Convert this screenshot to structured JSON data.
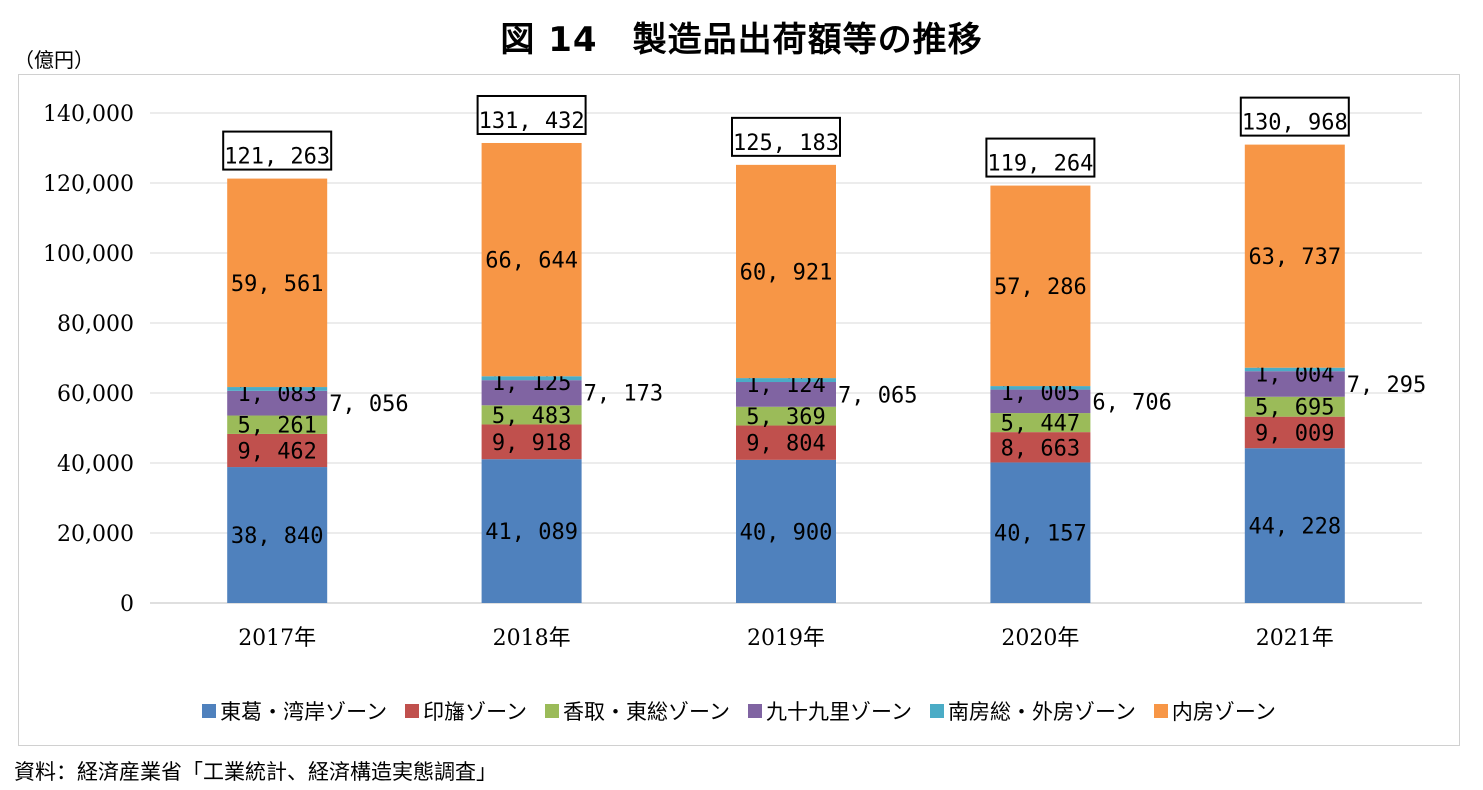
{
  "title": "図 14　製造品出荷額等の推移",
  "unit_label": "（億円）",
  "source": "資料：経済産業省「工業統計、経済構造実態調査」",
  "chart_data": {
    "type": "bar",
    "stacked": true,
    "categories": [
      "2017年",
      "2018年",
      "2019年",
      "2020年",
      "2021年"
    ],
    "ylim": [
      0,
      140000
    ],
    "yticks": [
      0,
      20000,
      40000,
      60000,
      80000,
      100000,
      120000,
      140000
    ],
    "ytick_labels": [
      "0",
      "20,000",
      "40,000",
      "60,000",
      "80,000",
      "100,000",
      "120,000",
      "140,000"
    ],
    "grid": true,
    "legend_position": "bottom",
    "series": [
      {
        "name": "東葛・湾岸ゾーン",
        "color": "#4f81bd",
        "values": [
          38840,
          41089,
          40900,
          40157,
          44228
        ],
        "labels": [
          "38, 840",
          "41, 089",
          "40, 900",
          "40, 157",
          "44, 228"
        ]
      },
      {
        "name": "印旛ゾーン",
        "color": "#c0504d",
        "values": [
          9462,
          9918,
          9804,
          8663,
          9009
        ],
        "labels": [
          "9, 462",
          "9, 918",
          "9, 804",
          "8, 663",
          "9, 009"
        ]
      },
      {
        "name": "香取・東総ゾーン",
        "color": "#9bbb59",
        "values": [
          5261,
          5483,
          5369,
          5447,
          5695
        ],
        "labels": [
          "5, 261",
          "5, 483",
          "5, 369",
          "5, 447",
          "5, 695"
        ]
      },
      {
        "name": "九十九里ゾーン",
        "color": "#8064a2",
        "values": [
          7056,
          7173,
          7065,
          6706,
          7295
        ],
        "labels": [
          "7, 056",
          "7, 173",
          "7, 065",
          "6, 706",
          "7, 295"
        ]
      },
      {
        "name": "南房総・外房ゾーン",
        "color": "#4bacc6",
        "values": [
          1083,
          1125,
          1124,
          1005,
          1004
        ],
        "labels": [
          "1, 083",
          "1, 125",
          "1, 124",
          "1, 005",
          "1, 004"
        ]
      },
      {
        "name": "内房ゾーン",
        "color": "#f79646",
        "values": [
          59561,
          66644,
          60921,
          57286,
          63737
        ],
        "labels": [
          "59, 561",
          "66, 644",
          "60, 921",
          "57, 286",
          "63, 737"
        ]
      }
    ],
    "totals": [
      121263,
      131432,
      125183,
      119264,
      130968
    ],
    "total_labels": [
      "121, 263",
      "131, 432",
      "125, 183",
      "119, 264",
      "130, 968"
    ]
  }
}
